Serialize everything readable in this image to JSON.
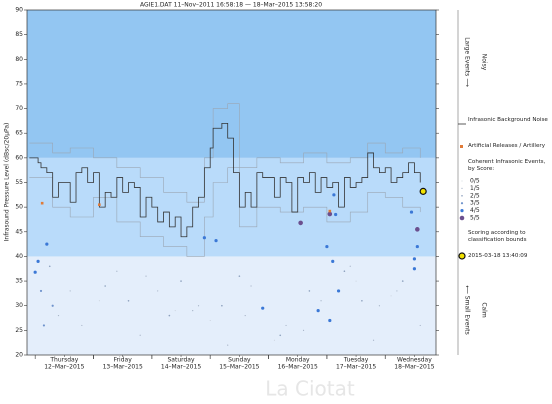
{
  "chart_data": {
    "type": "scatter",
    "title": "AGIE1.DAT   11–Nov–2011 16:58:18   —   18–Mar–2015 13:58:20",
    "y_label": "Infrasound Pressure Level  (dBsc/20µPa)",
    "xlim": [
      -0.14,
      6.87
    ],
    "ylim": [
      20,
      90
    ],
    "yticks": [
      20,
      25,
      30,
      35,
      40,
      45,
      50,
      55,
      60,
      65,
      70,
      75,
      80,
      85,
      90
    ],
    "xticks": [
      {
        "value": 0.5,
        "label": "Thursday"
      },
      {
        "value": 1.5,
        "label": "Friday"
      },
      {
        "value": 2.5,
        "label": "Saturday"
      },
      {
        "value": 3.5,
        "label": "Sunday"
      },
      {
        "value": 4.5,
        "label": "Monday"
      },
      {
        "value": 5.5,
        "label": "Tuesday"
      },
      {
        "value": 6.5,
        "label": "Wednesday"
      }
    ],
    "xtick_dates": [
      "12–Mar–2015",
      "13–Mar–2015",
      "14–Mar–2015",
      "15–Mar–2015",
      "16–Mar–2015",
      "17–Mar–2015",
      "18–Mar–2015"
    ],
    "bands": [
      {
        "from": 20,
        "to": 40,
        "color": "#e4eefb"
      },
      {
        "from": 40,
        "to": 60,
        "color": "#b9dbfa"
      },
      {
        "from": 60,
        "to": 90,
        "color": "#93c6f2"
      }
    ],
    "series": [
      {
        "name": "Infrasonic Background Noise",
        "color": "#333333",
        "x": [
          -0.1,
          0.05,
          0.1,
          0.2,
          0.3,
          0.4,
          0.5,
          0.6,
          0.7,
          0.8,
          0.9,
          1.0,
          1.1,
          1.2,
          1.3,
          1.4,
          1.5,
          1.6,
          1.7,
          1.8,
          1.9,
          2.0,
          2.1,
          2.2,
          2.3,
          2.4,
          2.5,
          2.6,
          2.7,
          2.8,
          2.9,
          3.0,
          3.05,
          3.2,
          3.3,
          3.4,
          3.5,
          3.6,
          3.7,
          3.8,
          3.9,
          4.0,
          4.1,
          4.2,
          4.3,
          4.4,
          4.5,
          4.6,
          4.7,
          4.8,
          4.9,
          5.0,
          5.1,
          5.2,
          5.3,
          5.4,
          5.5,
          5.6,
          5.7,
          5.8,
          5.9,
          6.0,
          6.1,
          6.2,
          6.3,
          6.4,
          6.5,
          6.6
        ],
        "values": [
          60,
          59,
          58,
          57,
          52,
          55,
          55,
          51,
          57,
          58,
          55,
          57,
          50,
          53,
          52,
          56,
          53,
          55,
          54,
          48,
          52,
          50,
          47,
          49,
          46,
          48,
          44,
          46,
          50,
          52,
          58,
          62,
          66,
          67,
          64,
          57,
          50,
          53,
          50,
          57,
          56,
          56,
          52,
          56,
          55,
          49,
          56,
          55,
          57,
          53,
          56,
          54,
          55,
          50,
          56,
          54,
          55,
          56,
          61,
          58,
          57,
          58,
          55,
          56,
          57,
          59,
          57,
          55
        ]
      },
      {
        "color": "#9aa6b4",
        "x": [
          -0.1,
          0.3,
          0.6,
          1.0,
          1.4,
          1.8,
          2.2,
          2.6,
          2.9,
          3.05,
          3.3,
          3.5,
          3.8,
          4.2,
          4.6,
          5.0,
          5.4,
          5.7,
          6.0,
          6.3,
          6.6
        ],
        "values": [
          63,
          61,
          62,
          60,
          58,
          56,
          53,
          51,
          60,
          70,
          71,
          58,
          60,
          59,
          61,
          59,
          60,
          63,
          61,
          62,
          60
        ]
      },
      {
        "color": "#9aa6b4",
        "x": [
          -0.1,
          0.3,
          0.6,
          1.0,
          1.4,
          1.8,
          2.2,
          2.6,
          2.9,
          3.05,
          3.3,
          3.5,
          3.8,
          4.2,
          4.6,
          5.0,
          5.4,
          5.7,
          6.0,
          6.3,
          6.6
        ],
        "values": [
          56,
          50,
          48,
          52,
          47,
          44,
          42,
          40,
          48,
          55,
          58,
          46,
          50,
          49,
          50,
          47,
          49,
          53,
          52,
          50,
          49
        ]
      }
    ],
    "artillery": {
      "name": "Artificial Releases / Artillery",
      "color": "#e07b39",
      "x": [
        0.12,
        1.1,
        5.05
      ],
      "values": [
        50.8,
        50.5,
        49.2
      ]
    },
    "events": {
      "name": "Coherent Infrasonic Events, by Score:",
      "x": [
        0.2,
        0.05,
        0.0,
        0.1,
        0.3,
        0.15,
        2.9,
        3.1,
        3.9,
        4.55,
        5.05,
        5.12,
        5.15,
        5.0,
        5.1,
        5.2,
        4.85,
        5.05,
        6.55,
        6.55,
        6.5,
        6.5,
        6.45,
        0.25,
        1.2,
        1.6,
        2.3,
        2.5,
        3.2,
        3.5,
        4.2,
        4.7,
        5.3,
        5.6,
        6.3,
        0.4,
        0.8,
        1.4,
        1.8,
        2.1,
        2.7,
        3.3,
        3.7,
        4.3,
        4.9,
        5.4,
        5.9,
        6.2,
        6.6,
        1.1,
        2.4,
        3.0,
        4.1,
        5.5,
        6.1,
        0.6,
        1.9,
        2.8,
        3.6,
        4.6,
        5.8
      ],
      "values": [
        42.5,
        39,
        36.8,
        33,
        30,
        26,
        43.8,
        43.2,
        29.5,
        46.8,
        48.6,
        52.5,
        48.5,
        42,
        39,
        33,
        29,
        27,
        45.5,
        42,
        39.5,
        37.5,
        49,
        38,
        34,
        31,
        28,
        35,
        30,
        36,
        24,
        33,
        37,
        31,
        35,
        28,
        26,
        37,
        24,
        33,
        29,
        22,
        34,
        26,
        31,
        38,
        30,
        33,
        26,
        31,
        29,
        27,
        23,
        35,
        32,
        33,
        36,
        30,
        28,
        25,
        23
      ],
      "scores": [
        4,
        4,
        4,
        3,
        3,
        3,
        4,
        4,
        4,
        5,
        5,
        4,
        4,
        4,
        4,
        4,
        4,
        4,
        5,
        4,
        4,
        4,
        4,
        2,
        2,
        2,
        2,
        2,
        2,
        2,
        2,
        2,
        2,
        2,
        2,
        1,
        1,
        1,
        1,
        1,
        1,
        1,
        1,
        1,
        1,
        1,
        1,
        1,
        1,
        0,
        0,
        0,
        0,
        0,
        0,
        1,
        1,
        1,
        1,
        1,
        1
      ]
    },
    "score_labels": [
      "0/5",
      "1/5",
      "2/5",
      "3/5",
      "4/5",
      "5/5"
    ],
    "score_colors": [
      "#c5ccd6",
      "#a6b3c6",
      "#8ca0bd",
      "#6f93cc",
      "#3b78d6",
      "#6b4f8e"
    ],
    "scoring_note": "Scoring according to classification bounds",
    "highlight": {
      "label": "2015-03-18 13:40:09",
      "x": 6.65,
      "value": 53.2,
      "color": "#f2e100"
    },
    "side_labels": {
      "upper": "Large Events ⟶",
      "upper_note": "Noisy",
      "lower": "⟵ Small Events",
      "lower_note": "Calm"
    }
  },
  "watermark": "La Ciotat"
}
